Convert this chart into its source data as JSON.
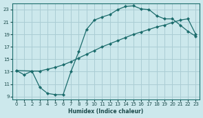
{
  "xlabel": "Humidex (Indice chaleur)",
  "bg_color": "#cce8ec",
  "grid_color": "#aacdd4",
  "line_color": "#1a6b6b",
  "xlim": [
    -0.5,
    23.5
  ],
  "ylim": [
    8.5,
    24.0
  ],
  "xticks": [
    0,
    1,
    2,
    3,
    4,
    5,
    6,
    7,
    8,
    9,
    10,
    11,
    12,
    13,
    14,
    15,
    16,
    17,
    18,
    19,
    20,
    21,
    22,
    23
  ],
  "yticks": [
    9,
    11,
    13,
    15,
    17,
    19,
    21,
    23
  ],
  "curve1_x": [
    0,
    1,
    2,
    3,
    4,
    5,
    6,
    7,
    8,
    9,
    10,
    11,
    12,
    13,
    14,
    15,
    16,
    17,
    18,
    19,
    20,
    21,
    22,
    23
  ],
  "curve1_y": [
    13.2,
    12.5,
    13.1,
    10.5,
    9.5,
    9.3,
    9.3,
    13.0,
    16.2,
    19.8,
    21.3,
    21.8,
    22.2,
    23.0,
    23.5,
    23.6,
    23.1,
    23.0,
    22.0,
    21.5,
    21.5,
    20.5,
    19.5,
    18.7
  ],
  "curve2_x": [
    0,
    2,
    3,
    4,
    5,
    6,
    7,
    8,
    9,
    10,
    11,
    12,
    13,
    14,
    15,
    16,
    17,
    18,
    19,
    20,
    21,
    22,
    23
  ],
  "curve2_y": [
    13.2,
    13.1,
    13.1,
    13.4,
    13.7,
    14.1,
    14.6,
    15.2,
    15.8,
    16.4,
    17.0,
    17.5,
    18.0,
    18.5,
    19.0,
    19.4,
    19.8,
    20.2,
    20.5,
    20.9,
    21.3,
    21.5,
    19.0
  ]
}
